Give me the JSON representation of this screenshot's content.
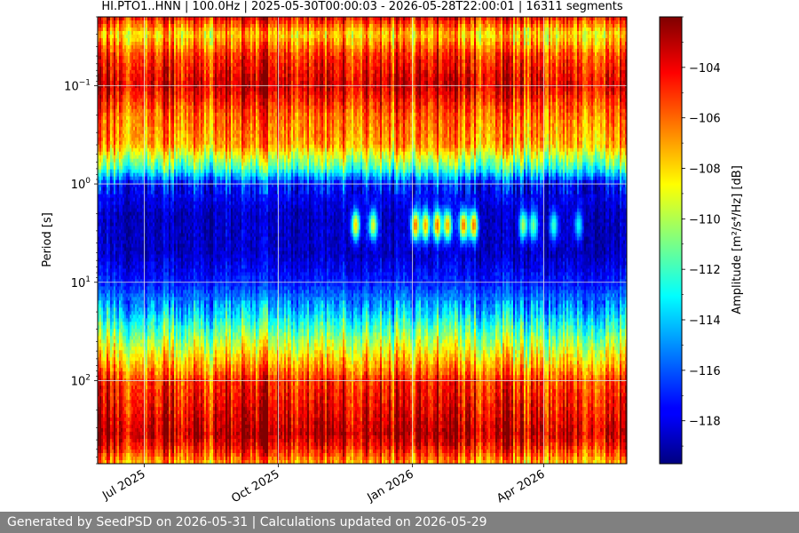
{
  "chart_data": {
    "type": "heatmap",
    "title": "HI.PTO1..HNN | 100.0Hz | 2025-05-30T00:00:03 - 2026-05-28T22:00:01 | 16311 segments",
    "xlabel": "",
    "ylabel": "Period [s]",
    "colorbar_label": "Amplitude [m²/s⁴/Hz] [dB]",
    "x_range": [
      "2025-05-30",
      "2026-05-28"
    ],
    "x_ticks": [
      {
        "date": "2025-07-01",
        "label": "Jul 2025"
      },
      {
        "date": "2025-10-01",
        "label": "Oct 2025"
      },
      {
        "date": "2026-01-01",
        "label": "Jan 2026"
      },
      {
        "date": "2026-04-01",
        "label": "Apr 2026"
      }
    ],
    "y_scale": "log",
    "y_inverted": true,
    "y_range": [
      0.02,
      700
    ],
    "y_ticks": [
      {
        "value": 0.1,
        "base": "10",
        "exp": "−1"
      },
      {
        "value": 1,
        "base": "10",
        "exp": "0"
      },
      {
        "value": 10,
        "base": "10",
        "exp": "1"
      },
      {
        "value": 100,
        "base": "10",
        "exp": "2"
      }
    ],
    "colorbar_range": [
      -119.7,
      -102.0
    ],
    "colorbar_ticks": [
      -104,
      -106,
      -108,
      -110,
      -112,
      -114,
      -116,
      -118
    ],
    "colormap": "jet",
    "grid": true,
    "period_profile_db": [
      {
        "period": 0.02,
        "db": -104
      },
      {
        "period": 0.03,
        "db": -108
      },
      {
        "period": 0.05,
        "db": -105
      },
      {
        "period": 0.1,
        "db": -103.5
      },
      {
        "period": 0.2,
        "db": -106
      },
      {
        "period": 0.4,
        "db": -107
      },
      {
        "period": 0.7,
        "db": -112
      },
      {
        "period": 1,
        "db": -117
      },
      {
        "period": 2,
        "db": -118.5
      },
      {
        "period": 5,
        "db": -118.5
      },
      {
        "period": 10,
        "db": -117
      },
      {
        "period": 20,
        "db": -114
      },
      {
        "period": 40,
        "db": -110
      },
      {
        "period": 70,
        "db": -107
      },
      {
        "period": 100,
        "db": -105
      },
      {
        "period": 200,
        "db": -104
      },
      {
        "period": 350,
        "db": -103
      },
      {
        "period": 450,
        "db": -104
      },
      {
        "period": 700,
        "db": -107
      }
    ],
    "microseism_events": [
      {
        "date": "2025-11-23",
        "db": -108
      },
      {
        "date": "2025-12-05",
        "db": -109
      },
      {
        "date": "2026-01-03",
        "db": -106
      },
      {
        "date": "2026-01-10",
        "db": -107
      },
      {
        "date": "2026-01-18",
        "db": -106
      },
      {
        "date": "2026-01-25",
        "db": -107
      },
      {
        "date": "2026-02-05",
        "db": -106
      },
      {
        "date": "2026-02-12",
        "db": -106
      },
      {
        "date": "2026-03-18",
        "db": -110
      },
      {
        "date": "2026-03-25",
        "db": -111
      },
      {
        "date": "2026-04-08",
        "db": -112
      },
      {
        "date": "2026-04-25",
        "db": -113
      }
    ]
  },
  "footer": {
    "text": "Generated by SeedPSD on 2026-05-31 | Calculations updated on 2026-05-29"
  }
}
